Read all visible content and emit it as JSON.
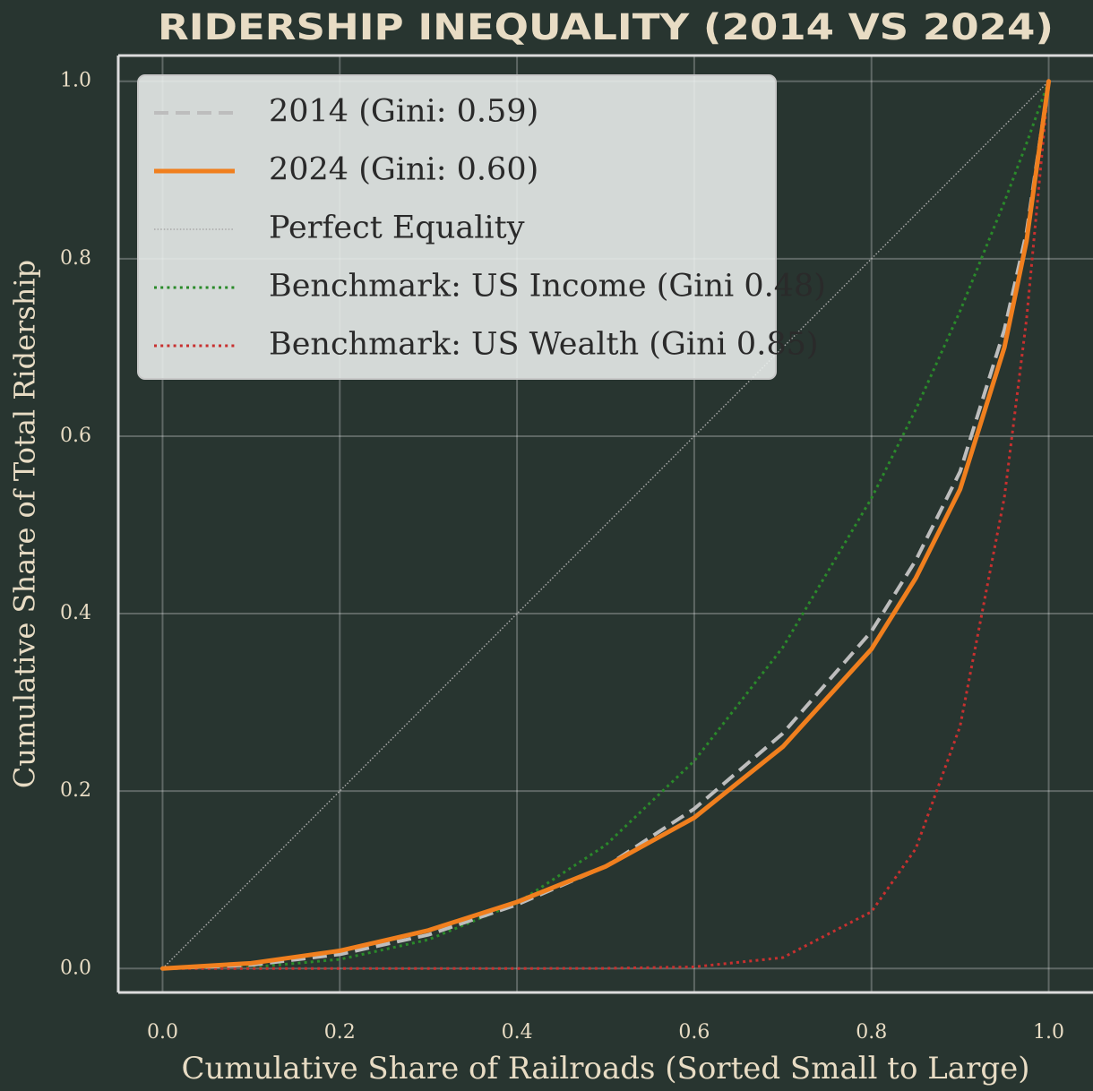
{
  "chart_data": {
    "type": "line",
    "title": "RIDERSHIP INEQUALITY (2014 VS 2024)",
    "xlabel": "Cumulative Share of Railroads (Sorted Small to Large)",
    "ylabel": "Cumulative Share of Total Ridership",
    "x": [
      0,
      0.1,
      0.2,
      0.3,
      0.4,
      0.5,
      0.6,
      0.7,
      0.8,
      0.85,
      0.9,
      0.95,
      0.975,
      1
    ],
    "series": [
      {
        "name": "2014 (Gini: 0.59)",
        "color": "#bdbdbd",
        "linestyle": "dashed",
        "linewidth": 4,
        "values": [
          0,
          0.004,
          0.016,
          0.038,
          0.072,
          0.115,
          0.18,
          0.265,
          0.38,
          0.46,
          0.56,
          0.72,
          0.83,
          1
        ]
      },
      {
        "name": "2024 (Gini: 0.60)",
        "color": "#f07f1e",
        "linestyle": "solid",
        "linewidth": 5,
        "values": [
          0,
          0.006,
          0.02,
          0.043,
          0.075,
          0.115,
          0.17,
          0.25,
          0.36,
          0.44,
          0.54,
          0.7,
          0.82,
          1
        ]
      },
      {
        "name": "Perfect Equality",
        "color": "#a8a8a8",
        "linestyle": "dotted",
        "linewidth": 1.5,
        "values": [
          0,
          0.1,
          0.2,
          0.3,
          0.4,
          0.5,
          0.6,
          0.7,
          0.8,
          0.85,
          0.9,
          0.95,
          0.975,
          1
        ]
      },
      {
        "name": "Benchmark: US Income (Gini 0.48)",
        "color": "#2a8a2a",
        "linestyle": "dotted",
        "linewidth": 3,
        "values": [
          0,
          0.0014,
          0.0103,
          0.0325,
          0.0737,
          0.139,
          0.234,
          0.362,
          0.53,
          0.63,
          0.741,
          0.864,
          0.93,
          1
        ]
      },
      {
        "name": "Benchmark: US Wealth (Gini 0.85)",
        "color": "#c8302f",
        "linestyle": "dotted",
        "linewidth": 3,
        "values": [
          0,
          0,
          0,
          0,
          0,
          0.0002,
          0.0018,
          0.0123,
          0.064,
          0.135,
          0.273,
          0.531,
          0.732,
          1
        ]
      }
    ],
    "xlim": [
      -0.05,
      1.05
    ],
    "ylim": [
      -0.027,
      1.029
    ],
    "xticks": [
      {
        "value": 0,
        "label": "0.0"
      },
      0.2,
      0.4,
      0.6,
      0.8,
      {
        "value": 1,
        "label": "1.0"
      }
    ],
    "yticks": [
      {
        "value": 0,
        "label": "0.0"
      },
      0.2,
      0.4,
      0.6,
      0.8,
      {
        "value": 1,
        "label": "1.0"
      }
    ],
    "grid": true,
    "legend": "upper left"
  }
}
